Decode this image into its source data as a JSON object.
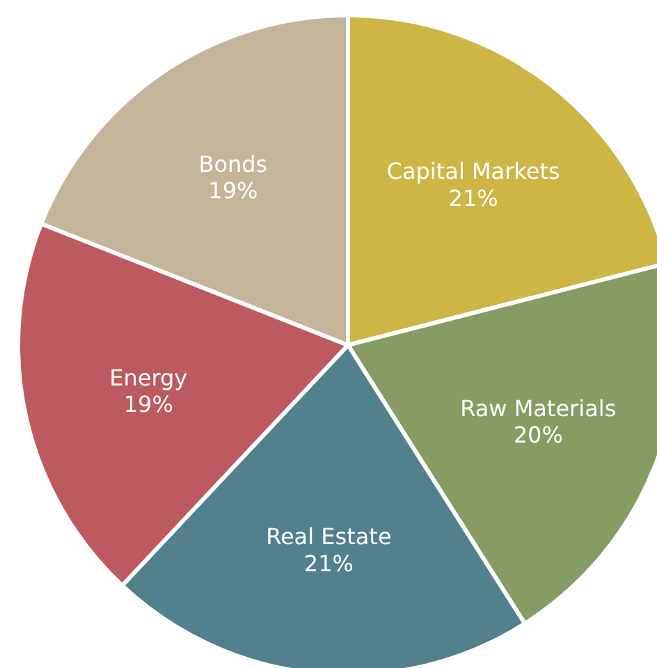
{
  "chart_data": {
    "type": "pie",
    "categories": [
      "Capital Markets",
      "Raw Materials",
      "Real Estate",
      "Energy",
      "Bonds"
    ],
    "values": [
      21,
      20,
      21,
      19,
      19
    ],
    "colors": [
      "#cdb546",
      "#879c62",
      "#52808c",
      "#bc5a5f",
      "#c4b49a"
    ],
    "value_labels": [
      "21%",
      "20%",
      "21%",
      "19%",
      "19%"
    ]
  }
}
